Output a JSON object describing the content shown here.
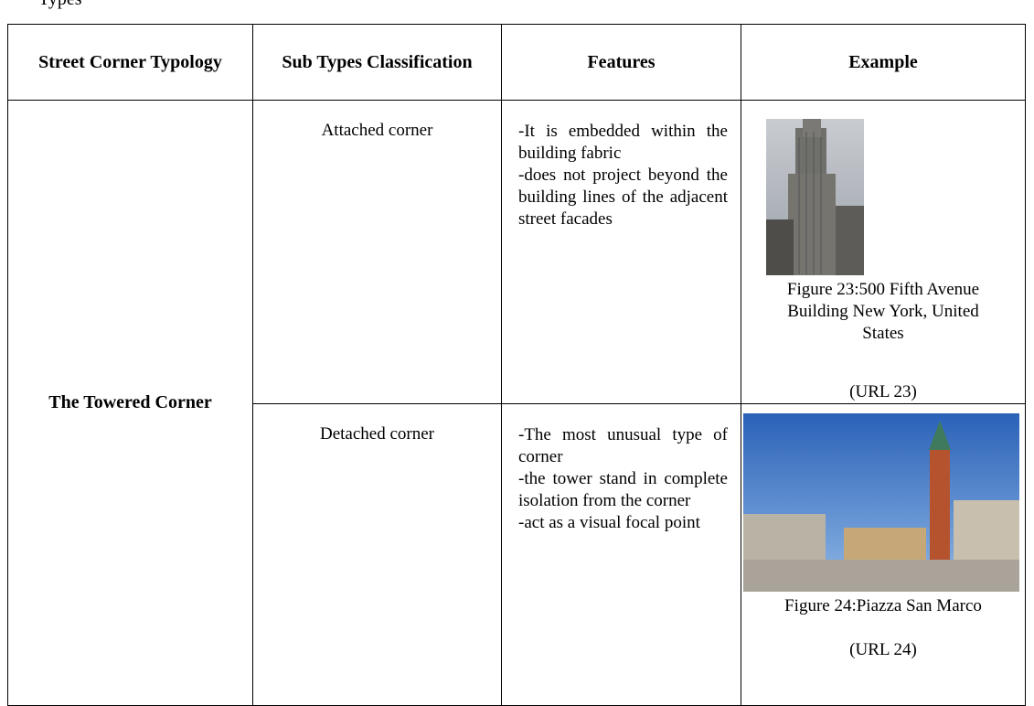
{
  "caption": "Types",
  "table": {
    "headers": [
      "Street Corner Typology",
      "Sub Types Classification",
      "Features",
      "Example"
    ],
    "typology": "The Towered Corner",
    "rows": [
      {
        "subtype": "Attached corner",
        "features": [
          "-It is embedded within the building fabric",
          "-does not project beyond the building lines of the adjacent street facades"
        ],
        "figure_caption": [
          "Figure 23:500 Fifth Avenue",
          "Building New York, United",
          "States"
        ],
        "source": "(URL 23)"
      },
      {
        "subtype": "Detached corner",
        "features": [
          "-The most unusual type of corner",
          "-the tower stand in complete isolation from the corner",
          "-act as a visual focal point"
        ],
        "figure_caption": [
          "Figure 24:Piazza San Marco"
        ],
        "source": "(URL 24)"
      }
    ]
  }
}
